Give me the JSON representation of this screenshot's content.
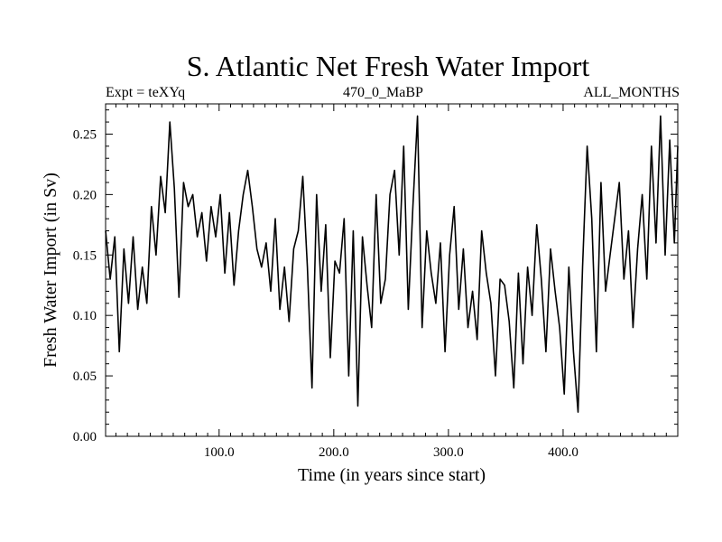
{
  "chart_data": {
    "type": "line",
    "title": "S. Atlantic Net Fresh Water Import",
    "subtitle_left": "Expt = teXYq",
    "subtitle_center": "470_0_MaBP",
    "subtitle_right": "ALL_MONTHS",
    "xlabel": "Time (in years since start)",
    "ylabel": "Fresh Water Import (in Sv)",
    "xlim": [
      1,
      500
    ],
    "ylim": [
      0,
      0.275
    ],
    "xticks": [
      100,
      200,
      300,
      400
    ],
    "xtick_labels": [
      "100.0",
      "200.0",
      "300.0",
      "400.0"
    ],
    "yticks": [
      0,
      0.05,
      0.1,
      0.15,
      0.2,
      0.25
    ],
    "ytick_labels": [
      "0.00",
      "0.05",
      "0.10",
      "0.15",
      "0.20",
      "0.25"
    ],
    "grid": false,
    "line_color": "#000000",
    "series": [
      {
        "x": [
          1,
          5,
          9,
          13,
          17,
          21,
          25,
          29,
          33,
          37,
          41,
          45,
          49,
          53,
          57,
          61,
          65,
          69,
          73,
          77,
          81,
          85,
          89,
          93,
          97,
          101,
          105,
          109,
          113,
          117,
          121,
          125,
          129,
          133,
          137,
          141,
          145,
          149,
          153,
          157,
          161,
          165,
          169,
          173,
          177,
          181,
          185,
          189,
          193,
          197,
          201,
          205,
          209,
          213,
          217,
          221,
          225,
          229,
          233,
          237,
          241,
          245,
          249,
          253,
          257,
          261,
          265,
          269,
          273,
          277,
          281,
          285,
          289,
          293,
          297,
          301,
          305,
          309,
          313,
          317,
          321,
          325,
          329,
          333,
          337,
          341,
          345,
          349,
          353,
          357,
          361,
          365,
          369,
          373,
          377,
          381,
          385,
          389,
          393,
          397,
          401,
          405,
          409,
          413,
          417,
          421,
          425,
          429,
          433,
          437,
          441,
          445,
          449,
          453,
          457,
          461,
          465,
          469,
          473,
          477,
          481,
          485,
          489,
          493,
          497,
          500
        ],
        "y": [
          0.17,
          0.13,
          0.165,
          0.07,
          0.155,
          0.11,
          0.165,
          0.105,
          0.14,
          0.11,
          0.19,
          0.15,
          0.215,
          0.185,
          0.26,
          0.205,
          0.115,
          0.21,
          0.19,
          0.2,
          0.165,
          0.185,
          0.145,
          0.19,
          0.165,
          0.2,
          0.135,
          0.185,
          0.125,
          0.17,
          0.2,
          0.22,
          0.19,
          0.155,
          0.14,
          0.16,
          0.12,
          0.18,
          0.105,
          0.14,
          0.095,
          0.155,
          0.17,
          0.215,
          0.14,
          0.04,
          0.2,
          0.12,
          0.175,
          0.065,
          0.145,
          0.135,
          0.18,
          0.05,
          0.17,
          0.025,
          0.165,
          0.125,
          0.09,
          0.2,
          0.11,
          0.13,
          0.2,
          0.22,
          0.15,
          0.24,
          0.105,
          0.19,
          0.265,
          0.09,
          0.17,
          0.135,
          0.11,
          0.16,
          0.07,
          0.15,
          0.19,
          0.105,
          0.155,
          0.09,
          0.12,
          0.08,
          0.17,
          0.135,
          0.11,
          0.05,
          0.13,
          0.125,
          0.095,
          0.04,
          0.135,
          0.06,
          0.14,
          0.1,
          0.175,
          0.13,
          0.07,
          0.155,
          0.12,
          0.09,
          0.035,
          0.14,
          0.07,
          0.02,
          0.14,
          0.24,
          0.18,
          0.07,
          0.21,
          0.12,
          0.15,
          0.18,
          0.21,
          0.13,
          0.17,
          0.09,
          0.155,
          0.2,
          0.13,
          0.24,
          0.16,
          0.265,
          0.15,
          0.245,
          0.16,
          0.24
        ]
      }
    ]
  }
}
